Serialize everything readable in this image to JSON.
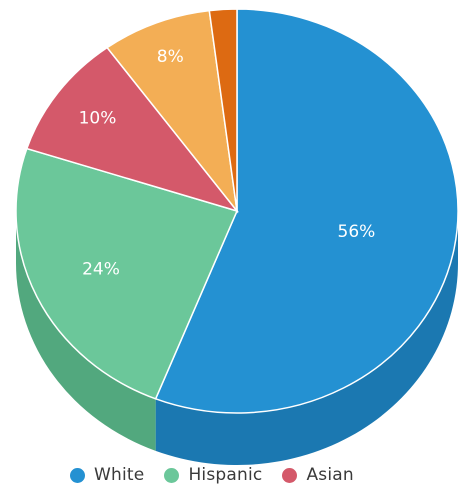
{
  "chart_data": {
    "type": "pie",
    "style": "3d",
    "slices": [
      {
        "value": 56,
        "label": "56%",
        "legend": "White",
        "color": "#2491D2",
        "side_color": "#1B78B1"
      },
      {
        "value": 24,
        "label": "24%",
        "legend": "Hispanic",
        "color": "#6BC79A",
        "side_color": "#52A87E"
      },
      {
        "value": 10,
        "label": "10%",
        "legend": "Asian",
        "color": "#D4596A",
        "side_color": "#B24658"
      },
      {
        "value": 8,
        "label": "8%",
        "legend": "",
        "color": "#F3AE55",
        "side_color": "#D49440"
      },
      {
        "value": 2,
        "label": "",
        "legend": "",
        "color": "#DD6A12",
        "side_color": "#BB570C"
      }
    ],
    "start_angle_deg": 0,
    "direction": "clockwise",
    "legend_position": "bottom"
  },
  "legend": {
    "items": [
      {
        "label": "White",
        "color": "#2491D2"
      },
      {
        "label": "Hispanic",
        "color": "#6BC79A"
      },
      {
        "label": "Asian",
        "color": "#D4596A"
      }
    ]
  }
}
